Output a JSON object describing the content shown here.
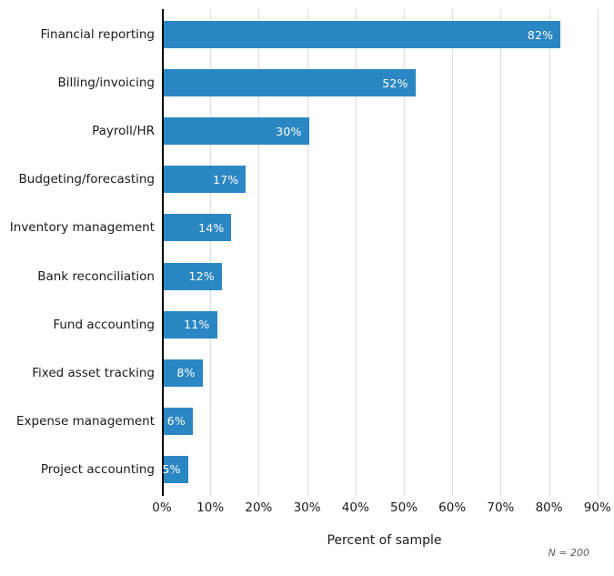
{
  "chart_data": {
    "type": "bar",
    "orientation": "horizontal",
    "title": "",
    "categories": [
      "Financial reporting",
      "Billing/invoicing",
      "Payroll/HR",
      "Budgeting/forecasting",
      "Inventory management",
      "Bank reconciliation",
      "Fund accounting",
      "Fixed asset tracking",
      "Expense management",
      "Project accounting"
    ],
    "values": [
      82,
      52,
      30,
      17,
      14,
      12,
      11,
      8,
      6,
      5
    ],
    "value_labels": [
      "82%",
      "52%",
      "30%",
      "17%",
      "14%",
      "12%",
      "11%",
      "8%",
      "6%",
      "5%"
    ],
    "xlabel": "Percent of sample",
    "ylabel": "",
    "x_ticks": [
      "0%",
      "10%",
      "20%",
      "30%",
      "40%",
      "50%",
      "60%",
      "70%",
      "80%",
      "90%"
    ],
    "xlim": [
      0,
      90
    ],
    "grid": "vertical",
    "legend": "none",
    "note": "N = 200",
    "colors": {
      "bar": "#2b87c3",
      "gridline": "#dcdcdc",
      "axis_line": "#000000",
      "value_label_text": "#ffffff",
      "tick_text": "#1a1a1a",
      "note_text": "#5a5a66"
    }
  }
}
